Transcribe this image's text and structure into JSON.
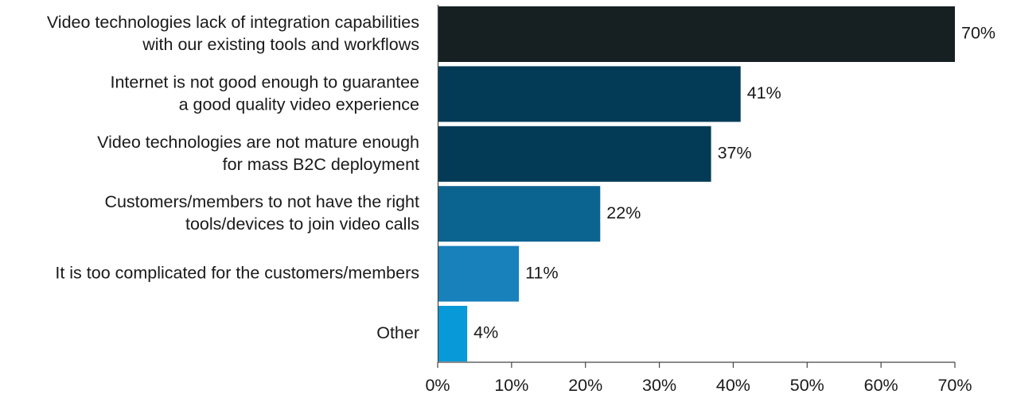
{
  "chart_data": {
    "type": "bar",
    "orientation": "horizontal",
    "categories": [
      [
        "Video technologies lack of integration capabilities",
        "with our existing tools and workflows"
      ],
      [
        "Internet is not good enough to guarantee",
        "a good quality video experience"
      ],
      [
        "Video technologies are not mature enough",
        "for mass B2C deployment"
      ],
      [
        "Customers/members to not have the right",
        "tools/devices to join video calls"
      ],
      [
        "It is too complicated for the customers/members"
      ],
      [
        "Other"
      ]
    ],
    "values": [
      70,
      41,
      37,
      22,
      11,
      4
    ],
    "value_labels": [
      "70%",
      "41%",
      "37%",
      "22%",
      "11%",
      "4%"
    ],
    "bar_colors": [
      "#162023",
      "#033b57",
      "#033b57",
      "#0b6490",
      "#1880bb",
      "#0899d8"
    ],
    "xlim": [
      0,
      70
    ],
    "x_ticks": [
      0,
      10,
      20,
      30,
      40,
      50,
      60,
      70
    ],
    "x_tick_labels": [
      "0%",
      "10%",
      "20%",
      "30%",
      "40%",
      "50%",
      "60%",
      "70%"
    ],
    "title": "",
    "xlabel": "",
    "ylabel": "",
    "grid": false,
    "legend": "none"
  }
}
